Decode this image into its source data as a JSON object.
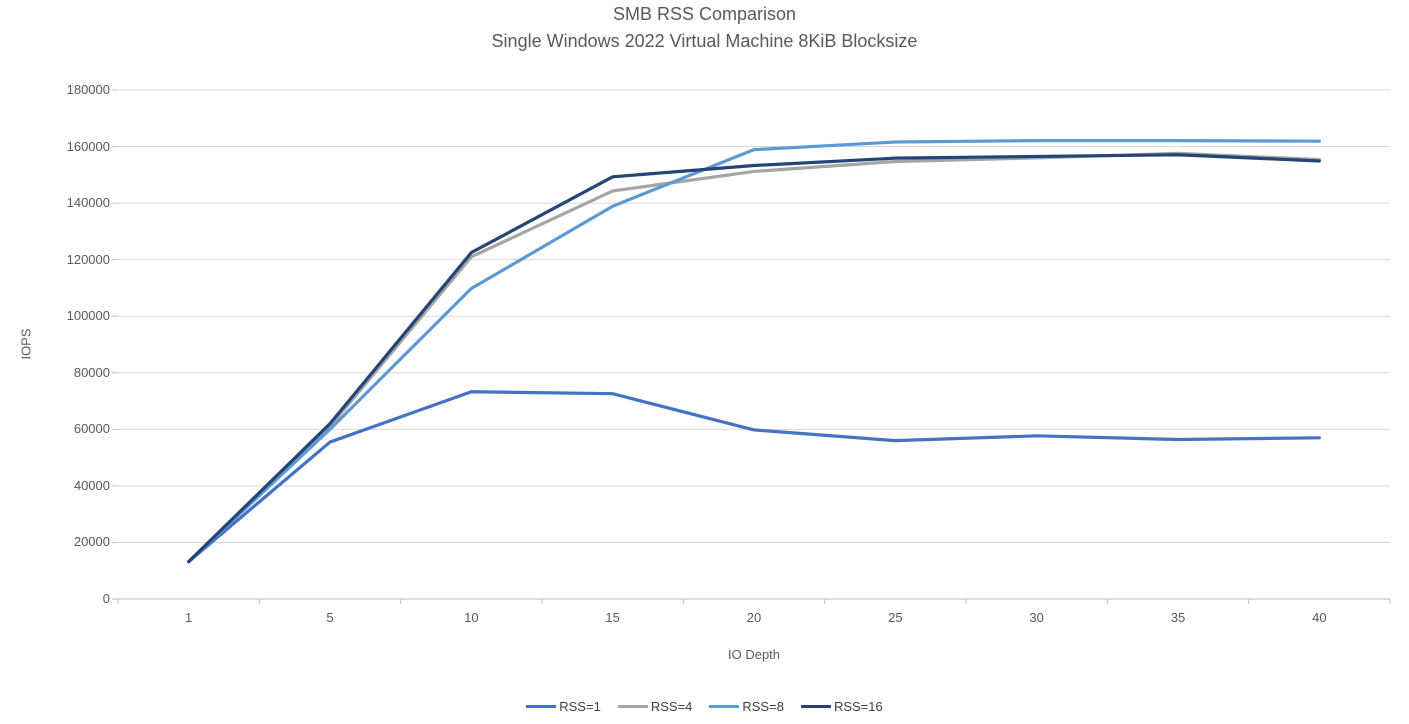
{
  "title": {
    "line1": "SMB RSS Comparison",
    "line2": "Single Windows 2022 Virtual Machine 8KiB Blocksize"
  },
  "chart_data": {
    "type": "line",
    "title": "SMB RSS Comparison",
    "subtitle": "Single Windows 2022 Virtual Machine 8KiB Blocksize",
    "xlabel": "IO Depth",
    "ylabel": "IOPS",
    "x": [
      1,
      5,
      10,
      15,
      20,
      25,
      30,
      35,
      40
    ],
    "series": [
      {
        "name": "RSS=1",
        "color": "#4472C4",
        "values": [
          13200,
          55500,
          73300,
          72600,
          59800,
          56000,
          57700,
          56400,
          57000
        ]
      },
      {
        "name": "RSS=4",
        "color": "#A5A5A5",
        "values": [
          13200,
          61000,
          121000,
          144300,
          151200,
          154700,
          156000,
          157600,
          155400
        ]
      },
      {
        "name": "RSS=8",
        "color": "#5B9BD5",
        "values": [
          13200,
          60000,
          109800,
          138900,
          158900,
          161600,
          162100,
          162100,
          161900
        ]
      },
      {
        "name": "RSS=16",
        "color": "#264478",
        "values": [
          13200,
          62000,
          122500,
          149300,
          153300,
          155900,
          156500,
          157100,
          154900
        ]
      }
    ],
    "ylim": [
      0,
      180000
    ],
    "ytick_step": 20000,
    "grid": true,
    "legend_position": "bottom"
  },
  "axes": {
    "y_ticks": [
      "0",
      "20000",
      "40000",
      "60000",
      "80000",
      "100000",
      "120000",
      "140000",
      "160000",
      "180000"
    ],
    "x_ticks": [
      "1",
      "5",
      "10",
      "15",
      "20",
      "25",
      "30",
      "35",
      "40"
    ]
  },
  "colors": {
    "gridline": "#D9D9D9",
    "axis_line": "#BFBFBF",
    "tick_text": "#595959",
    "title_text": "#595959",
    "legend_text": "#404040",
    "background": "#FFFFFF"
  }
}
